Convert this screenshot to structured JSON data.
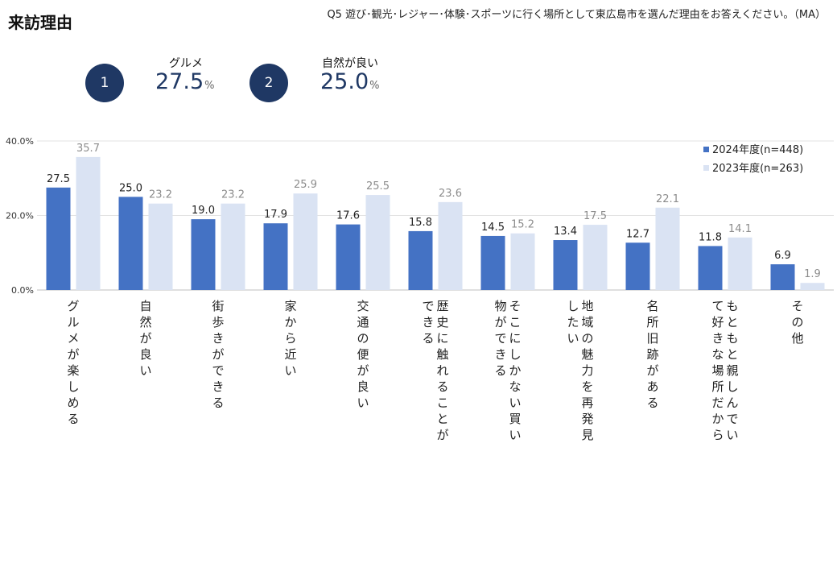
{
  "page": {
    "title": "来訪理由",
    "question": "Q5 遊び･観光･レジャー･体験･スポーツに行く場所として東広島市を選んだ理由をお答えください。（MA）"
  },
  "top_ranks": [
    {
      "rank": "1",
      "label": "グルメ",
      "value": "27.5",
      "unit": "%"
    },
    {
      "rank": "2",
      "label": "自然が良い",
      "value": "25.0",
      "unit": "%"
    }
  ],
  "colors": {
    "series_2024": "#4472c4",
    "series_2023": "#dae3f3",
    "badge": "#1f3864"
  },
  "chart_data": {
    "type": "bar",
    "ylim": [
      0,
      40
    ],
    "yticks": [
      "0.0%",
      "20.0%",
      "40.0%"
    ],
    "ytick_values": [
      0,
      20,
      40
    ],
    "legend_position": "top-right",
    "categories": [
      [
        "グルメが楽しめる"
      ],
      [
        "自然が良い"
      ],
      [
        "街歩きができる"
      ],
      [
        "家から近い"
      ],
      [
        "交通の便が良い"
      ],
      [
        "歴史に触れることが",
        "できる"
      ],
      [
        "そこにしかない買い",
        "物ができる"
      ],
      [
        "地域の魅力を再発見",
        "したい"
      ],
      [
        "名所旧跡がある"
      ],
      [
        "もともと親しんでい",
        "て好きな場所だから"
      ],
      [
        "その他"
      ]
    ],
    "series": [
      {
        "name": "2024年度(n=448)",
        "values": [
          27.5,
          25.0,
          19.0,
          17.9,
          17.6,
          15.8,
          14.5,
          13.4,
          12.7,
          11.8,
          6.9
        ]
      },
      {
        "name": "2023年度(n=263)",
        "values": [
          35.7,
          23.2,
          23.2,
          25.9,
          25.5,
          23.6,
          15.2,
          17.5,
          22.1,
          14.1,
          1.9
        ]
      }
    ]
  }
}
